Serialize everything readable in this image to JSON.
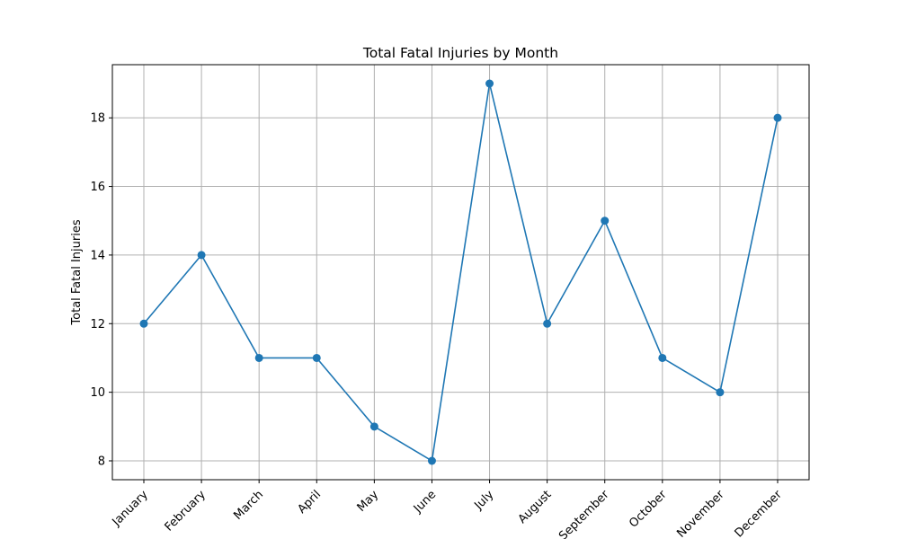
{
  "chart_data": {
    "type": "line",
    "title": "Total Fatal Injuries by Month",
    "xlabel": "",
    "ylabel": "Total Fatal Injuries",
    "categories": [
      "January",
      "February",
      "March",
      "April",
      "May",
      "June",
      "July",
      "August",
      "September",
      "October",
      "November",
      "December"
    ],
    "series": [
      {
        "values": [
          12,
          14,
          11,
          11,
          9,
          8,
          19,
          12,
          15,
          11,
          10,
          18
        ]
      }
    ],
    "ylim": [
      7.45,
      19.55
    ],
    "yticks": [
      8,
      10,
      12,
      14,
      16,
      18
    ],
    "grid": true,
    "markers": true,
    "colors": {
      "line": "#1f77b4",
      "grid": "#b0b0b0"
    }
  }
}
